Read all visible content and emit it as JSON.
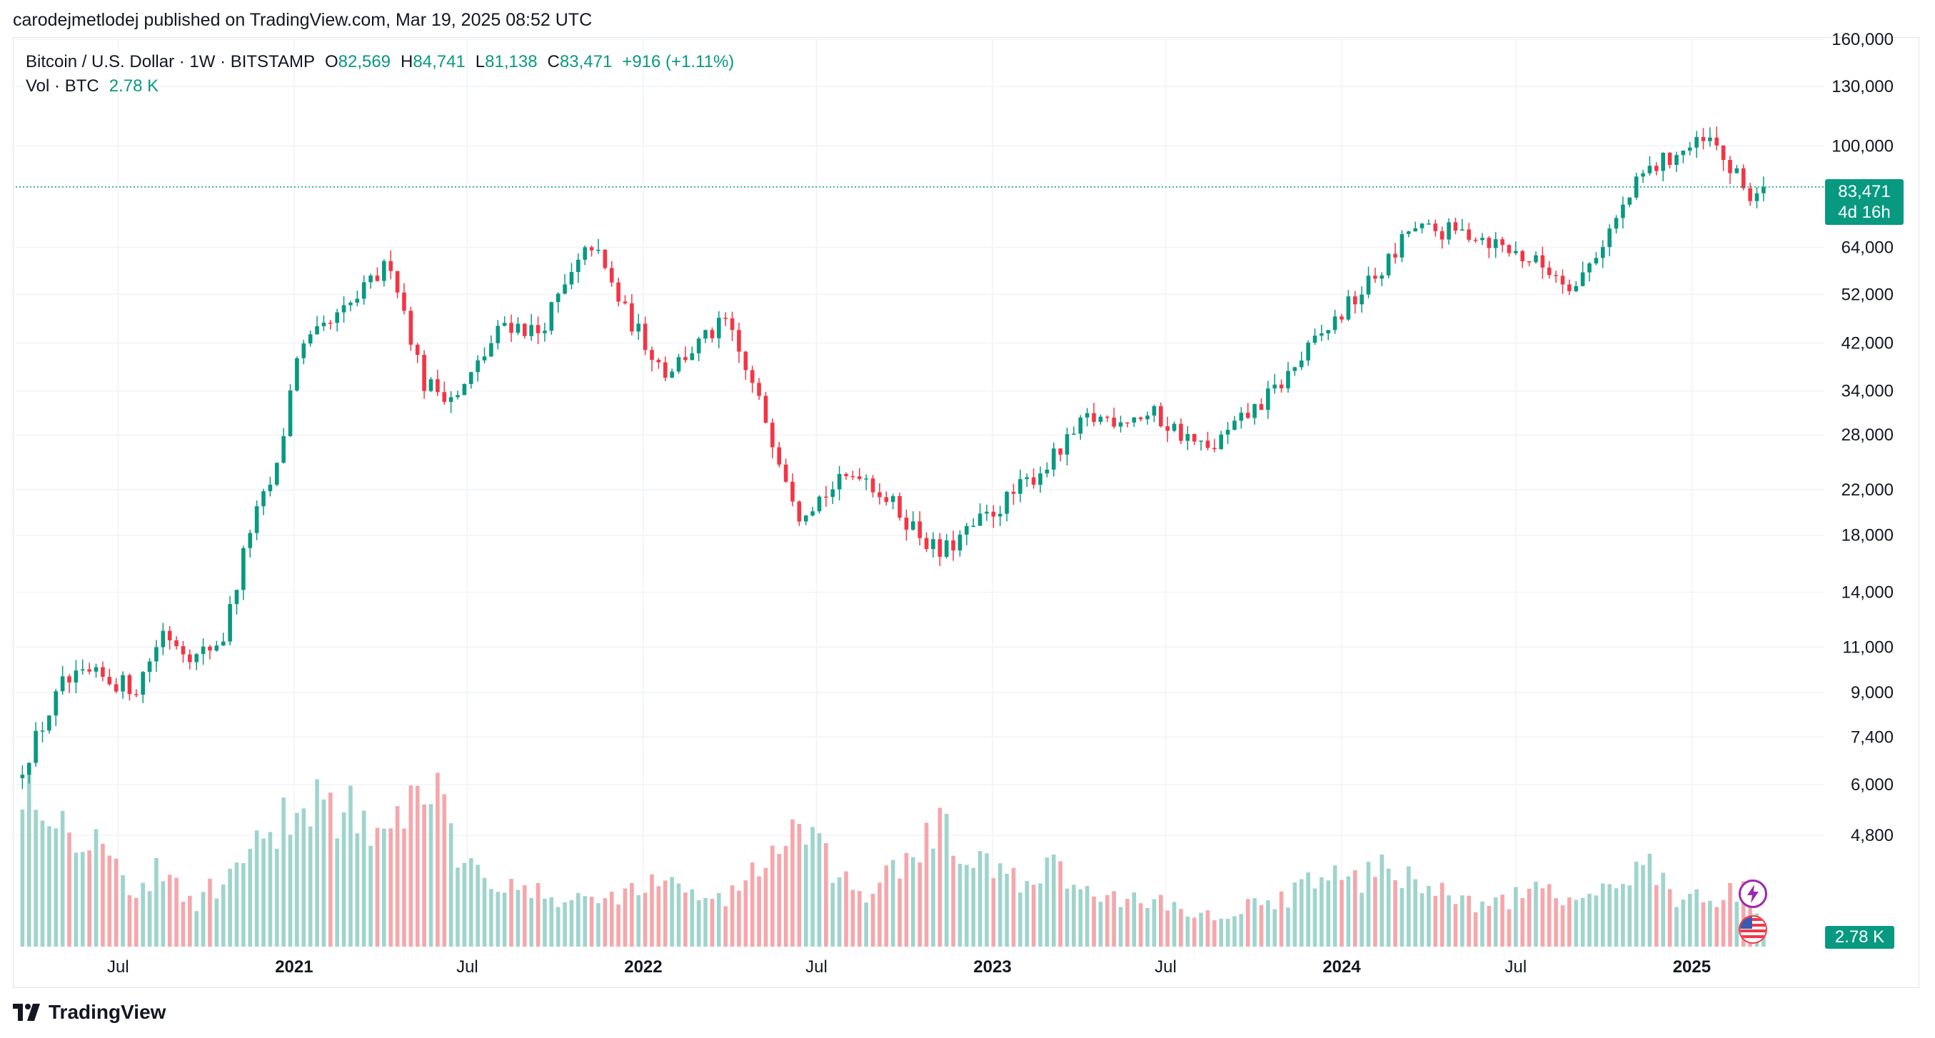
{
  "published": "carodejmetlodej published on TradingView.com, Mar 19, 2025 08:52 UTC",
  "legend": {
    "symbol": "Bitcoin / U.S. Dollar · 1W · BITSTAMP",
    "o_label": "O",
    "o_value": "82,569",
    "h_label": "H",
    "h_value": "84,741",
    "l_label": "L",
    "l_value": "81,138",
    "c_label": "C",
    "c_value": "83,471",
    "change": "+916 (+1.11%)",
    "vol_label": "Vol · BTC",
    "vol_value": "2.78 K"
  },
  "price_tag": {
    "price": "83,471",
    "countdown": "4d 16h"
  },
  "vol_tag": "2.78 K",
  "brand": "TradingView",
  "colors": {
    "up": "#089981",
    "down": "#f23645",
    "vol_up": "#9fd4cd",
    "vol_down": "#f5a7ab",
    "grid": "#f0f3fa"
  },
  "chart_data": {
    "type": "candlestick",
    "symbol": "BTCUSD",
    "interval": "1W",
    "scale": "log",
    "ylim": [
      4300,
      160000
    ],
    "y_ticks": [
      4800,
      6000,
      7400,
      9000,
      11000,
      14000,
      18000,
      22000,
      28000,
      34000,
      42000,
      52000,
      64000,
      100000,
      130000,
      160000
    ],
    "y_tick_labels": [
      "4,800",
      "6,000",
      "7,400",
      "9,000",
      "11,000",
      "14,000",
      "18,000",
      "22,000",
      "28,000",
      "34,000",
      "42,000",
      "52,000",
      "64,000",
      "100,000",
      "130,000",
      "160,000"
    ],
    "x_labels": [
      {
        "date": "2020-07-01",
        "text": "Jul",
        "bold": false
      },
      {
        "date": "2021-01-01",
        "text": "2021",
        "bold": true
      },
      {
        "date": "2021-07-01",
        "text": "Jul",
        "bold": false
      },
      {
        "date": "2022-01-01",
        "text": "2022",
        "bold": true
      },
      {
        "date": "2022-07-01",
        "text": "Jul",
        "bold": false
      },
      {
        "date": "2023-01-01",
        "text": "2023",
        "bold": true
      },
      {
        "date": "2023-07-01",
        "text": "Jul",
        "bold": false
      },
      {
        "date": "2024-01-01",
        "text": "2024",
        "bold": true
      },
      {
        "date": "2024-07-01",
        "text": "Jul",
        "bold": false
      },
      {
        "date": "2025-01-01",
        "text": "2025",
        "bold": true
      }
    ],
    "date_range": [
      "2020-03-23",
      "2025-03-17"
    ],
    "last_close": 83471,
    "series": [
      {
        "date": "2020-03-23",
        "close": 6500,
        "volume": 70
      },
      {
        "date": "2020-05-04",
        "close": 9300,
        "volume": 50
      },
      {
        "date": "2020-06-01",
        "close": 9700,
        "volume": 45
      },
      {
        "date": "2020-07-20",
        "close": 9200,
        "volume": 22
      },
      {
        "date": "2020-08-17",
        "close": 11800,
        "volume": 30
      },
      {
        "date": "2020-09-21",
        "close": 10500,
        "volume": 18
      },
      {
        "date": "2020-10-19",
        "close": 11500,
        "volume": 25
      },
      {
        "date": "2020-11-16",
        "close": 18500,
        "volume": 36
      },
      {
        "date": "2020-12-14",
        "close": 24000,
        "volume": 42
      },
      {
        "date": "2021-01-04",
        "close": 40000,
        "volume": 60
      },
      {
        "date": "2021-02-22",
        "close": 48000,
        "volume": 55
      },
      {
        "date": "2021-04-12",
        "close": 60000,
        "volume": 40
      },
      {
        "date": "2021-05-17",
        "close": 35000,
        "volume": 70
      },
      {
        "date": "2021-06-21",
        "close": 33000,
        "volume": 40
      },
      {
        "date": "2021-08-09",
        "close": 46000,
        "volume": 25
      },
      {
        "date": "2021-09-13",
        "close": 44000,
        "volume": 20
      },
      {
        "date": "2021-11-08",
        "close": 65000,
        "volume": 18
      },
      {
        "date": "2021-12-13",
        "close": 48000,
        "volume": 22
      },
      {
        "date": "2022-01-24",
        "close": 37000,
        "volume": 25
      },
      {
        "date": "2022-03-28",
        "close": 46000,
        "volume": 18
      },
      {
        "date": "2022-05-09",
        "close": 30000,
        "volume": 35
      },
      {
        "date": "2022-06-13",
        "close": 20000,
        "volume": 45
      },
      {
        "date": "2022-08-15",
        "close": 24000,
        "volume": 18
      },
      {
        "date": "2022-11-07",
        "close": 16500,
        "volume": 45
      },
      {
        "date": "2023-01-16",
        "close": 21000,
        "volume": 25
      },
      {
        "date": "2023-03-13",
        "close": 26000,
        "volume": 30
      },
      {
        "date": "2023-04-10",
        "close": 30000,
        "volume": 20
      },
      {
        "date": "2023-06-19",
        "close": 30500,
        "volume": 18
      },
      {
        "date": "2023-08-14",
        "close": 26000,
        "volume": 12
      },
      {
        "date": "2023-10-23",
        "close": 34000,
        "volume": 18
      },
      {
        "date": "2023-12-04",
        "close": 42000,
        "volume": 25
      },
      {
        "date": "2024-02-26",
        "close": 62000,
        "volume": 30
      },
      {
        "date": "2024-03-11",
        "close": 69000,
        "volume": 28
      },
      {
        "date": "2024-05-20",
        "close": 68000,
        "volume": 15
      },
      {
        "date": "2024-08-05",
        "close": 58000,
        "volume": 22
      },
      {
        "date": "2024-09-02",
        "close": 54000,
        "volume": 15
      },
      {
        "date": "2024-11-11",
        "close": 88000,
        "volume": 35
      },
      {
        "date": "2024-12-16",
        "close": 97000,
        "volume": 20
      },
      {
        "date": "2025-01-20",
        "close": 102000,
        "volume": 18
      },
      {
        "date": "2025-03-03",
        "close": 80000,
        "volume": 22
      },
      {
        "date": "2025-03-17",
        "close": 83471,
        "volume": 4
      }
    ]
  }
}
